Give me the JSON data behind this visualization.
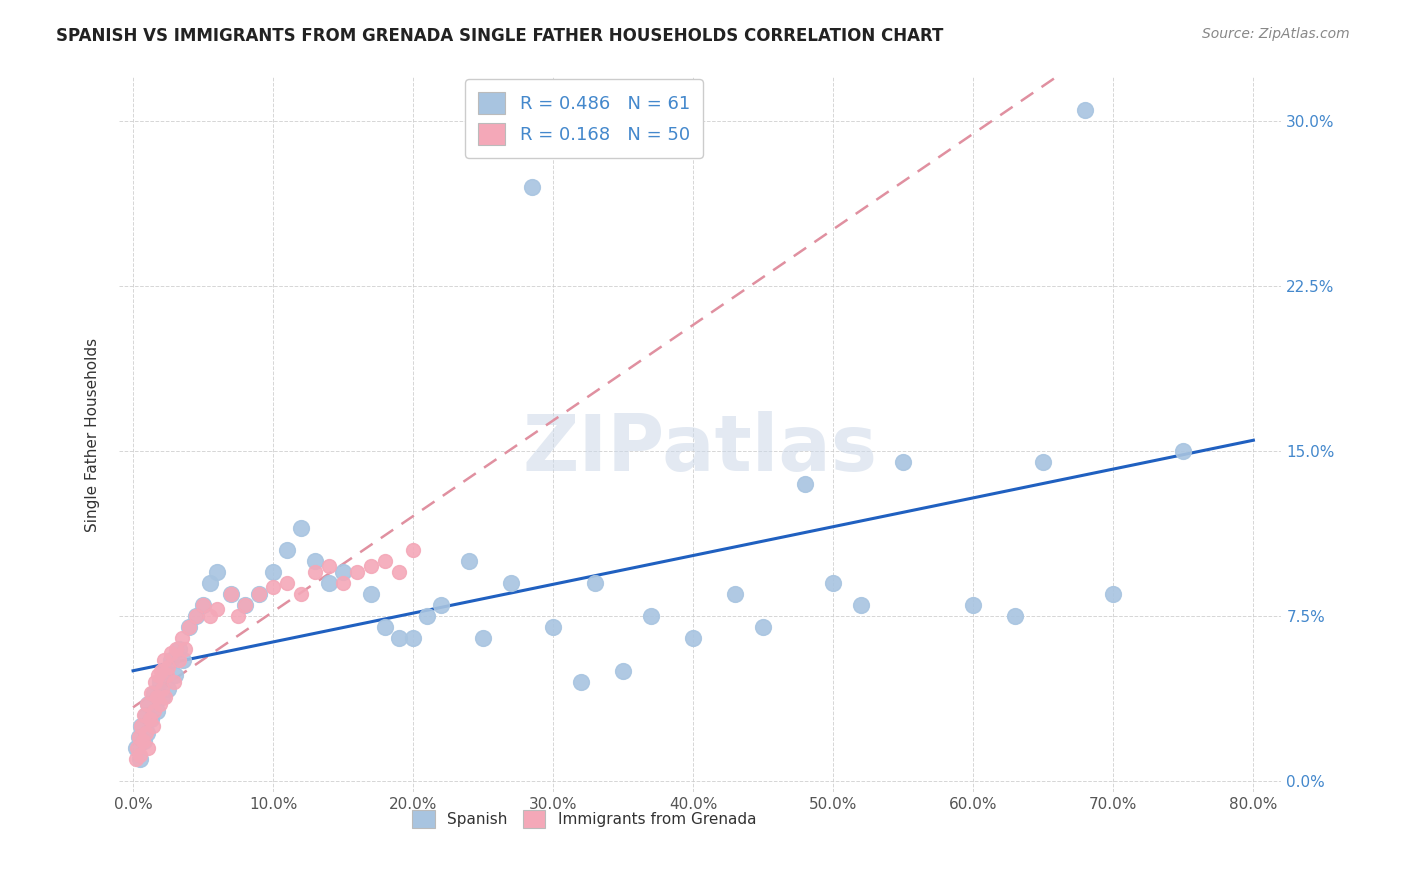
{
  "title": "SPANISH VS IMMIGRANTS FROM GRENADA SINGLE FATHER HOUSEHOLDS CORRELATION CHART",
  "source": "Source: ZipAtlas.com",
  "ylabel": "Single Father Households",
  "ytick_labels": [
    "0.0%",
    "7.5%",
    "15.0%",
    "22.5%",
    "30.0%"
  ],
  "ytick_vals": [
    0.0,
    7.5,
    15.0,
    22.5,
    30.0
  ],
  "xtick_vals": [
    0.0,
    10.0,
    20.0,
    30.0,
    40.0,
    50.0,
    60.0,
    70.0,
    80.0
  ],
  "xlim": [
    -1,
    82
  ],
  "ylim": [
    -0.5,
    32
  ],
  "legend_r_spanish": "0.486",
  "legend_n_spanish": "61",
  "legend_r_grenada": "0.168",
  "legend_n_grenada": "50",
  "spanish_color": "#a8c4e0",
  "grenada_color": "#f4a8b8",
  "spanish_line_color": "#2060c0",
  "grenada_line_color": "#e090a0",
  "watermark": "ZIPatlas",
  "spanish_x": [
    0.2,
    0.4,
    0.5,
    0.6,
    0.8,
    0.9,
    1.0,
    1.1,
    1.3,
    1.5,
    1.7,
    1.9,
    2.1,
    2.3,
    2.5,
    2.7,
    3.0,
    3.3,
    3.6,
    4.0,
    4.5,
    5.0,
    5.5,
    6.0,
    7.0,
    8.0,
    9.0,
    10.0,
    11.0,
    12.0,
    13.0,
    14.0,
    15.0,
    17.0,
    18.0,
    19.0,
    20.0,
    21.0,
    22.0,
    24.0,
    25.0,
    27.0,
    28.5,
    30.0,
    32.0,
    33.0,
    35.0,
    37.0,
    40.0,
    43.0,
    45.0,
    48.0,
    50.0,
    52.0,
    55.0,
    60.0,
    63.0,
    65.0,
    68.0,
    70.0,
    75.0
  ],
  "spanish_y": [
    1.5,
    2.0,
    1.0,
    2.5,
    1.8,
    3.0,
    2.2,
    3.5,
    2.8,
    4.0,
    3.2,
    4.5,
    3.8,
    5.0,
    4.2,
    5.5,
    4.8,
    6.0,
    5.5,
    7.0,
    7.5,
    8.0,
    9.0,
    9.5,
    8.5,
    8.0,
    8.5,
    9.5,
    10.5,
    11.5,
    10.0,
    9.0,
    9.5,
    8.5,
    7.0,
    6.5,
    6.5,
    7.5,
    8.0,
    10.0,
    6.5,
    9.0,
    27.0,
    7.0,
    4.5,
    9.0,
    5.0,
    7.5,
    6.5,
    8.5,
    7.0,
    13.5,
    9.0,
    8.0,
    14.5,
    8.0,
    7.5,
    14.5,
    30.5,
    8.5,
    15.0
  ],
  "grenada_x": [
    0.2,
    0.3,
    0.4,
    0.5,
    0.6,
    0.7,
    0.8,
    0.9,
    1.0,
    1.1,
    1.2,
    1.3,
    1.4,
    1.5,
    1.6,
    1.7,
    1.8,
    1.9,
    2.0,
    2.1,
    2.2,
    2.3,
    2.4,
    2.5,
    2.7,
    2.9,
    3.1,
    3.3,
    3.5,
    3.7,
    4.0,
    4.5,
    5.0,
    5.5,
    6.0,
    7.0,
    7.5,
    8.0,
    9.0,
    10.0,
    11.0,
    12.0,
    13.0,
    14.0,
    15.0,
    16.0,
    17.0,
    18.0,
    19.0,
    20.0
  ],
  "grenada_y": [
    1.0,
    1.5,
    2.0,
    1.2,
    2.5,
    1.8,
    3.0,
    2.2,
    3.5,
    1.5,
    2.8,
    4.0,
    2.5,
    3.2,
    4.5,
    3.8,
    4.8,
    3.5,
    5.0,
    4.2,
    5.5,
    3.8,
    4.8,
    5.2,
    5.8,
    4.5,
    6.0,
    5.5,
    6.5,
    6.0,
    7.0,
    7.5,
    8.0,
    7.5,
    7.8,
    8.5,
    7.5,
    8.0,
    8.5,
    8.8,
    9.0,
    8.5,
    9.5,
    9.8,
    9.0,
    9.5,
    9.8,
    10.0,
    9.5,
    10.5
  ]
}
